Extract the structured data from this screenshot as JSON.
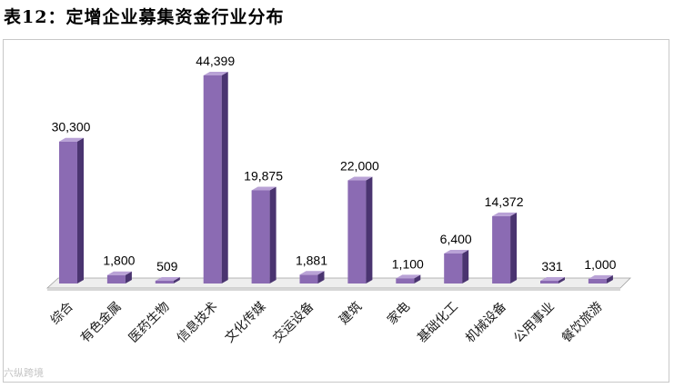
{
  "title": "表12：定增企业募集资金行业分布",
  "watermark": "六纵跨境",
  "colors": {
    "bar_front": "#8b6bb3",
    "bar_side": "#4a3470",
    "bar_top": "#b9a2d6",
    "floor": "#eeeeee",
    "floor_edge": "#a0a0a0"
  },
  "chart_data": {
    "type": "bar",
    "title": "",
    "xlabel": "",
    "ylabel": "",
    "categories": [
      "综合",
      "有色金属",
      "医药生物",
      "信息技术",
      "文化传媒",
      "交运设备",
      "建筑",
      "家电",
      "基础化工",
      "机械设备",
      "公用事业",
      "餐饮旅游"
    ],
    "values": [
      30300,
      1800,
      509,
      44399,
      19875,
      1881,
      22000,
      1100,
      6400,
      14372,
      331,
      1000
    ],
    "value_labels": [
      "30,300",
      "1,800",
      "509",
      "44,399",
      "19,875",
      "1,881",
      "22,000",
      "1,100",
      "6,400",
      "14,372",
      "331",
      "1,000"
    ],
    "ylim": [
      0,
      44399
    ],
    "grid": false,
    "legend": "none"
  }
}
